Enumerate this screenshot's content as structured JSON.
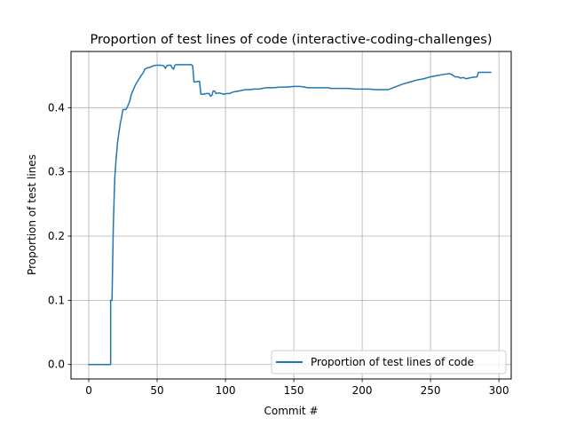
{
  "chart_data": {
    "type": "line",
    "title": "Proportion of test lines of code (interactive-coding-challenges)",
    "xlabel": "Commit #",
    "ylabel": "Proportion of test lines",
    "xlim": [
      -13,
      309
    ],
    "ylim": [
      -0.0225,
      0.4875
    ],
    "xticks": [
      0,
      50,
      100,
      150,
      200,
      250,
      300
    ],
    "yticks": [
      0.0,
      0.1,
      0.2,
      0.3,
      0.4
    ],
    "ytick_labels": [
      "0.0",
      "0.1",
      "0.2",
      "0.3",
      "0.4"
    ],
    "grid": true,
    "legend_position": "lower-right",
    "series": [
      {
        "name": "Proportion of test lines of code",
        "color": "#1f77b4",
        "points": [
          [
            0,
            0.0
          ],
          [
            16,
            0.0
          ],
          [
            16,
            0.1
          ],
          [
            17,
            0.1
          ],
          [
            18,
            0.22
          ],
          [
            19,
            0.29
          ],
          [
            20,
            0.32
          ],
          [
            21,
            0.345
          ],
          [
            22,
            0.36
          ],
          [
            23,
            0.375
          ],
          [
            24,
            0.385
          ],
          [
            25,
            0.397
          ],
          [
            27,
            0.397
          ],
          [
            28,
            0.4
          ],
          [
            30,
            0.41
          ],
          [
            31,
            0.42
          ],
          [
            32,
            0.425
          ],
          [
            34,
            0.435
          ],
          [
            36,
            0.442
          ],
          [
            38,
            0.449
          ],
          [
            40,
            0.455
          ],
          [
            41,
            0.46
          ],
          [
            43,
            0.462
          ],
          [
            45,
            0.463
          ],
          [
            47,
            0.465
          ],
          [
            49,
            0.466
          ],
          [
            51,
            0.466
          ],
          [
            53,
            0.466
          ],
          [
            55,
            0.465
          ],
          [
            56,
            0.461
          ],
          [
            57,
            0.465
          ],
          [
            58,
            0.466
          ],
          [
            60,
            0.466
          ],
          [
            61,
            0.462
          ],
          [
            62,
            0.46
          ],
          [
            63,
            0.466
          ],
          [
            64,
            0.467
          ],
          [
            66,
            0.467
          ],
          [
            75,
            0.467
          ],
          [
            76,
            0.465
          ],
          [
            77,
            0.44
          ],
          [
            78,
            0.44
          ],
          [
            80,
            0.441
          ],
          [
            81,
            0.441
          ],
          [
            82,
            0.421
          ],
          [
            84,
            0.421
          ],
          [
            86,
            0.422
          ],
          [
            88,
            0.422
          ],
          [
            89,
            0.418
          ],
          [
            90,
            0.419
          ],
          [
            91,
            0.426
          ],
          [
            92,
            0.426
          ],
          [
            93,
            0.422
          ],
          [
            95,
            0.423
          ],
          [
            97,
            0.422
          ],
          [
            99,
            0.421
          ],
          [
            101,
            0.422
          ],
          [
            103,
            0.422
          ],
          [
            105,
            0.424
          ],
          [
            107,
            0.425
          ],
          [
            110,
            0.426
          ],
          [
            112,
            0.427
          ],
          [
            115,
            0.428
          ],
          [
            118,
            0.428
          ],
          [
            121,
            0.429
          ],
          [
            124,
            0.429
          ],
          [
            127,
            0.43
          ],
          [
            130,
            0.431
          ],
          [
            135,
            0.431
          ],
          [
            140,
            0.432
          ],
          [
            145,
            0.432
          ],
          [
            150,
            0.433
          ],
          [
            155,
            0.433
          ],
          [
            158,
            0.432
          ],
          [
            160,
            0.431
          ],
          [
            165,
            0.431
          ],
          [
            170,
            0.431
          ],
          [
            175,
            0.431
          ],
          [
            177,
            0.43
          ],
          [
            180,
            0.43
          ],
          [
            185,
            0.43
          ],
          [
            190,
            0.43
          ],
          [
            195,
            0.429
          ],
          [
            200,
            0.429
          ],
          [
            205,
            0.429
          ],
          [
            210,
            0.428
          ],
          [
            215,
            0.428
          ],
          [
            219,
            0.428
          ],
          [
            225,
            0.433
          ],
          [
            230,
            0.437
          ],
          [
            235,
            0.44
          ],
          [
            240,
            0.443
          ],
          [
            245,
            0.445
          ],
          [
            250,
            0.448
          ],
          [
            255,
            0.45
          ],
          [
            260,
            0.452
          ],
          [
            264,
            0.453
          ],
          [
            266,
            0.451
          ],
          [
            268,
            0.448
          ],
          [
            270,
            0.448
          ],
          [
            272,
            0.446
          ],
          [
            274,
            0.447
          ],
          [
            276,
            0.445
          ],
          [
            278,
            0.446
          ],
          [
            280,
            0.447
          ],
          [
            284,
            0.448
          ],
          [
            285,
            0.455
          ],
          [
            290,
            0.455
          ],
          [
            294,
            0.455
          ]
        ]
      }
    ]
  }
}
